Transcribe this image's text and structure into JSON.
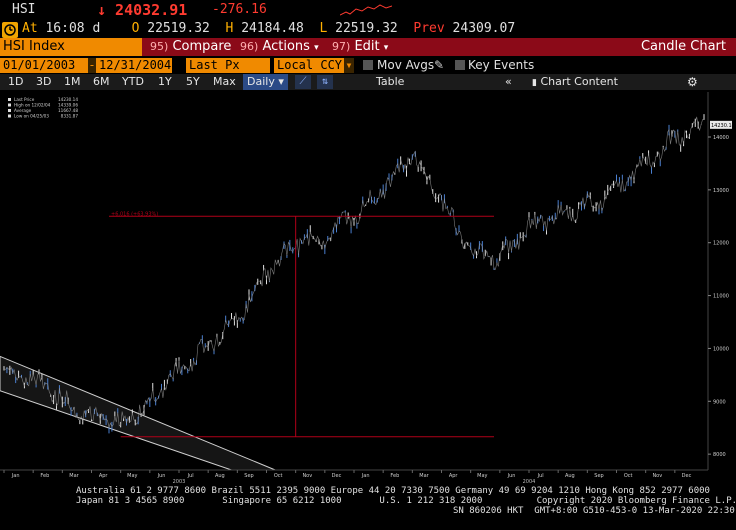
{
  "ticker": {
    "symbol": "HSI",
    "last_price": "↓ 24032.91",
    "change": "-276.16",
    "at_label": "At",
    "time": "16:08 d",
    "open_label": "O",
    "open": "22519.32",
    "high_label": "H",
    "high": "24184.48",
    "low_label": "L",
    "low": "22519.32",
    "prev_label": "Prev",
    "prev": "24309.07"
  },
  "menu": {
    "security": "HSI Index",
    "compare_num": "95)",
    "compare": "Compare",
    "actions_num": "96)",
    "actions": "Actions",
    "edit_num": "97)",
    "edit": "Edit",
    "title": "Candle Chart"
  },
  "range": {
    "start": "01/01/2003",
    "end": "12/31/2004",
    "field": "Last Px",
    "currency": "Local CCY",
    "mov_avgs": "Mov Avgs",
    "key_events": "Key Events"
  },
  "toolbar": {
    "periods": [
      "1D",
      "3D",
      "1M",
      "6M",
      "YTD",
      "1Y",
      "5Y",
      "Max"
    ],
    "frequency": "Daily",
    "table": "Table",
    "chart_content": "Chart Content"
  },
  "colors": {
    "accent": "#f08a00",
    "menubar": "#8b0a18",
    "down": "#ff3b30",
    "candle": "#4a7fd0"
  },
  "chart_data": {
    "type": "line",
    "legend": [
      {
        "label": "Last Price",
        "value": "14230.14"
      },
      {
        "label": "High on 12/02/04",
        "value": "14339.06"
      },
      {
        "label": "Average",
        "value": "11667.48"
      },
      {
        "label": "Low on 04/25/03",
        "value": "8331.87"
      }
    ],
    "last_value_tag": "14230.14",
    "annotation": "+6,016 (+63.93%)",
    "y_ticks": [
      8000,
      9000,
      10000,
      11000,
      12000,
      13000,
      14000
    ],
    "ylim": [
      7700,
      14700
    ],
    "x_ticks": [
      "Jan",
      "Feb",
      "Mar",
      "Apr",
      "May",
      "Jun",
      "Jul",
      "Aug",
      "Sep",
      "Oct",
      "Nov",
      "Dec",
      "Jan",
      "Feb",
      "Mar",
      "Apr",
      "May",
      "Jun",
      "Jul",
      "Aug",
      "Sep",
      "Oct",
      "Nov",
      "Dec"
    ],
    "year_labels": [
      "2003",
      "2004"
    ],
    "x_months": [
      0,
      1,
      2,
      3,
      4,
      5,
      6,
      7,
      8,
      9,
      10,
      11,
      12,
      13,
      14,
      15,
      16,
      17,
      18,
      19,
      20,
      21,
      22,
      23,
      24
    ],
    "values": [
      9600,
      9400,
      9050,
      8700,
      8550,
      9000,
      9600,
      10050,
      10600,
      11400,
      12000,
      12100,
      12500,
      13000,
      13700,
      12800,
      11800,
      11700,
      12300,
      12500,
      12700,
      13000,
      13500,
      14000,
      14200
    ]
  },
  "footer": {
    "line1": "Australia 61 2 9777 8600 Brazil 5511 2395 9000 Europe 44 20 7330 7500 Germany 49 69 9204 1210 Hong Kong 852 2977 6000",
    "line2": "Japan 81 3 4565 8900       Singapore 65 6212 1000       U.S. 1 212 318 2000          Copyright 2020 Bloomberg Finance L.P.",
    "line3": "SN 860206 HKT  GMT+8:00 G510-453-0 13-Mar-2020 22:30:25"
  }
}
